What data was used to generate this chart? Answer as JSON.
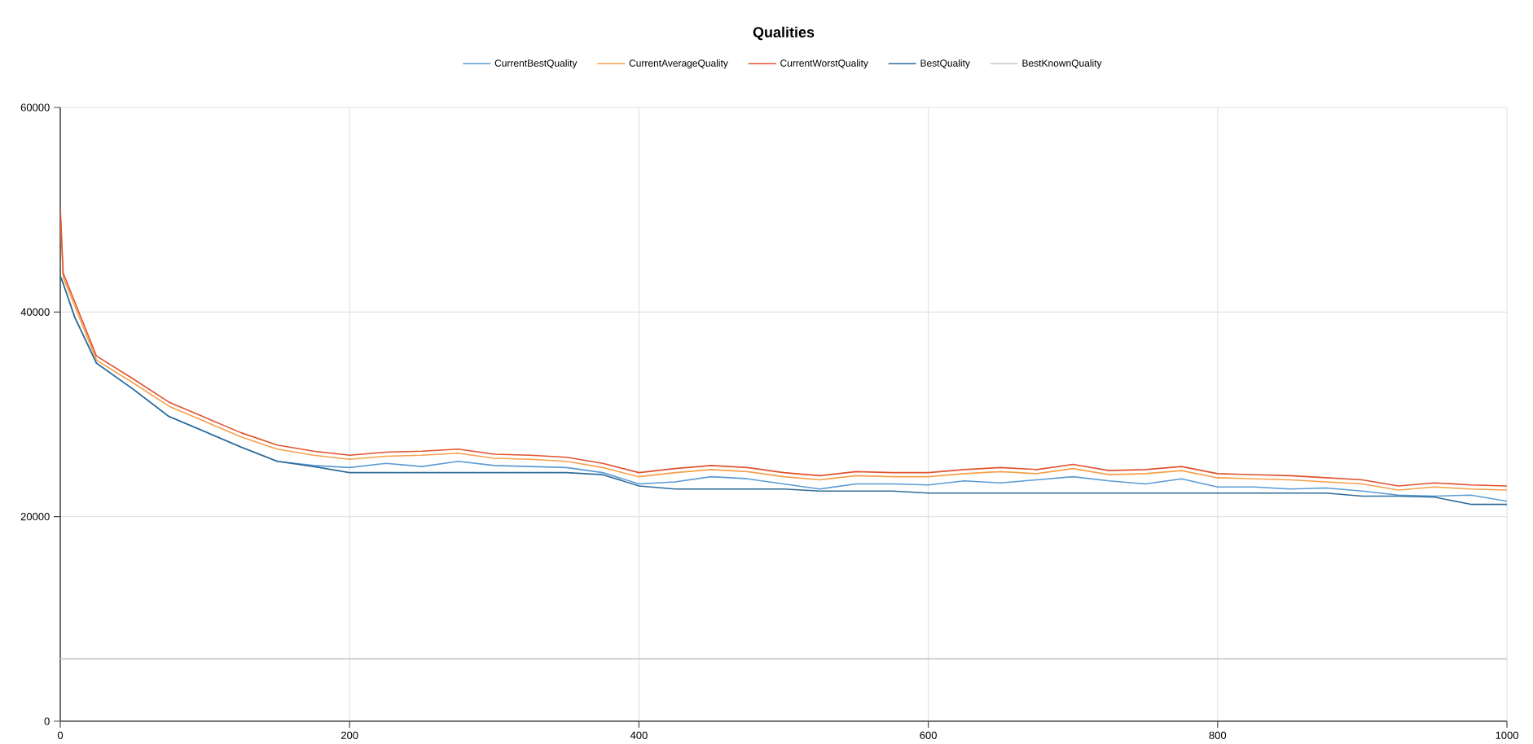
{
  "chart_data": {
    "type": "line",
    "title": "Qualities",
    "x": [
      0,
      2,
      10,
      25,
      50,
      75,
      100,
      125,
      150,
      175,
      200,
      225,
      250,
      275,
      300,
      325,
      350,
      375,
      400,
      425,
      450,
      475,
      500,
      525,
      550,
      575,
      600,
      625,
      650,
      675,
      700,
      725,
      750,
      775,
      800,
      825,
      850,
      875,
      900,
      925,
      950,
      975,
      1000
    ],
    "series": [
      {
        "name": "CurrentBestQuality",
        "color": "#5b9bd5",
        "values": [
          43500,
          42800,
          39500,
          35000,
          32500,
          29800,
          28300,
          26800,
          25400,
          25000,
          24800,
          25200,
          24900,
          25400,
          25000,
          24900,
          24800,
          24300,
          23200,
          23400,
          23900,
          23700,
          23200,
          22700,
          23200,
          23200,
          23100,
          23500,
          23300,
          23600,
          23900,
          23500,
          23200,
          23700,
          22900,
          22900,
          22700,
          22800,
          22500,
          22100,
          22000,
          22100,
          21500
        ]
      },
      {
        "name": "CurrentAverageQuality",
        "color": "#f5a04a",
        "values": [
          49800,
          43400,
          40600,
          35300,
          33100,
          30800,
          29300,
          27800,
          26600,
          26000,
          25600,
          25900,
          26000,
          26200,
          25700,
          25600,
          25400,
          24800,
          23900,
          24300,
          24600,
          24400,
          23900,
          23600,
          24000,
          23900,
          23900,
          24200,
          24400,
          24200,
          24700,
          24100,
          24200,
          24500,
          23800,
          23700,
          23600,
          23400,
          23200,
          22600,
          22900,
          22700,
          22600
        ]
      },
      {
        "name": "CurrentWorstQuality",
        "color": "#e0522f",
        "values": [
          50200,
          43800,
          41000,
          35700,
          33500,
          31200,
          29700,
          28200,
          27000,
          26400,
          26000,
          26300,
          26400,
          26600,
          26100,
          26000,
          25800,
          25200,
          24300,
          24700,
          25000,
          24800,
          24300,
          24000,
          24400,
          24300,
          24300,
          24600,
          24800,
          24600,
          25100,
          24500,
          24600,
          24900,
          24200,
          24100,
          24000,
          23800,
          23600,
          23000,
          23300,
          23100,
          23000
        ]
      },
      {
        "name": "BestQuality",
        "color": "#2f6c9a",
        "values": [
          43500,
          42800,
          39500,
          35000,
          32500,
          29800,
          28300,
          26800,
          25400,
          24900,
          24300,
          24300,
          24300,
          24300,
          24300,
          24300,
          24300,
          24100,
          23000,
          22700,
          22700,
          22700,
          22700,
          22500,
          22500,
          22500,
          22300,
          22300,
          22300,
          22300,
          22300,
          22300,
          22300,
          22300,
          22300,
          22300,
          22300,
          22300,
          22000,
          22000,
          21900,
          21200,
          21200
        ]
      },
      {
        "name": "BestKnownQuality",
        "color": "#c8c8c8",
        "x": [
          0,
          1000
        ],
        "values": [
          6100,
          6100
        ]
      }
    ],
    "xlim": [
      0,
      1000
    ],
    "ylim": [
      0,
      60000
    ],
    "xticks": [
      0,
      200,
      400,
      600,
      800,
      1000
    ],
    "yticks": [
      0,
      20000,
      40000,
      60000
    ],
    "grid": true,
    "legend": "top",
    "marker": "none",
    "line_style": "solid"
  }
}
